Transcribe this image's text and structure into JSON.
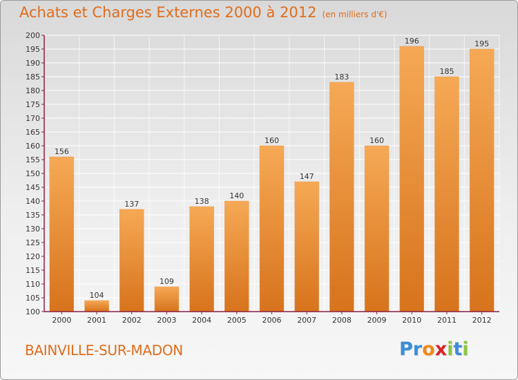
{
  "header": {
    "title": "Achats et Charges Externes 2000 à 2012",
    "subtitle": "(en milliers d'€)"
  },
  "footer": {
    "commune": "BAINVILLE-SUR-MADON",
    "logo": {
      "letters": [
        {
          "char": "P",
          "color": "#3a8ed8"
        },
        {
          "char": "r",
          "color": "#3a8ed8"
        },
        {
          "char": "o",
          "color": "#f08a1c"
        },
        {
          "char": "x",
          "color": "#d8232a"
        },
        {
          "char": "i",
          "color": "#8cc63f"
        },
        {
          "char": "t",
          "color": "#3a8ed8"
        },
        {
          "char": "i",
          "color": "#8cc63f"
        }
      ]
    }
  },
  "chart_data": {
    "type": "bar",
    "title": "Achats et Charges Externes 2000 à 2012",
    "subtitle": "(en milliers d'€)",
    "categories": [
      "2000",
      "2001",
      "2002",
      "2003",
      "2004",
      "2005",
      "2006",
      "2007",
      "2008",
      "2009",
      "2010",
      "2011",
      "2012"
    ],
    "values": [
      156,
      104,
      137,
      109,
      138,
      140,
      160,
      147,
      183,
      160,
      196,
      185,
      195
    ],
    "ylim": [
      100,
      200
    ],
    "yticks": [
      100,
      105,
      110,
      115,
      120,
      125,
      130,
      135,
      140,
      145,
      150,
      155,
      160,
      165,
      170,
      175,
      180,
      185,
      190,
      195,
      200
    ],
    "grid": true,
    "legend": "none",
    "colors": {
      "bar_light": "#f6a955",
      "bar_dark": "#d7731c",
      "axis": "#8b1e3f",
      "grid": "#ffffff"
    }
  }
}
